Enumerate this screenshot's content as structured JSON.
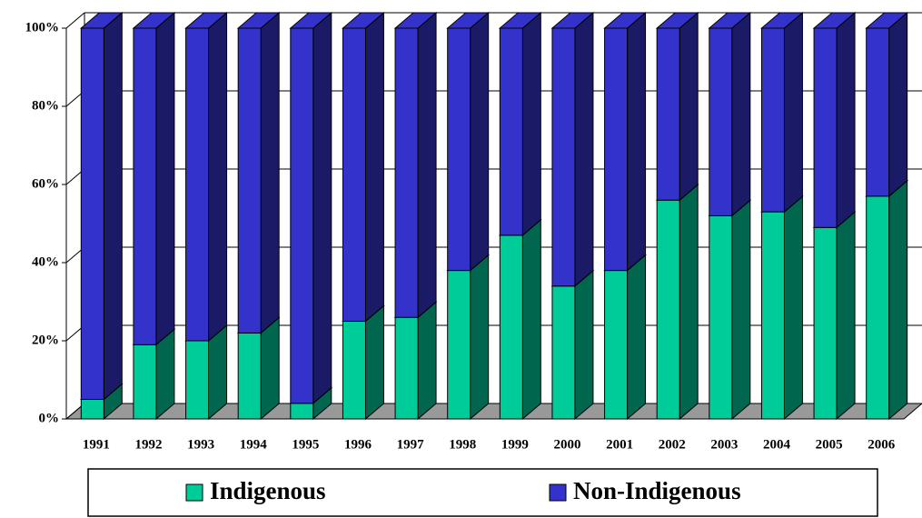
{
  "chart_data": {
    "type": "stacked-bar-3d",
    "categories": [
      "1991",
      "1992",
      "1993",
      "1994",
      "1995",
      "1996",
      "1997",
      "1998",
      "1999",
      "2000",
      "2001",
      "2002",
      "2003",
      "2004",
      "2005",
      "2006"
    ],
    "series": [
      {
        "name": "Indigenous",
        "color": "#00cc99",
        "values": [
          5,
          19,
          20,
          22,
          4,
          25,
          26,
          38,
          47,
          34,
          38,
          56,
          52,
          53,
          49,
          57
        ]
      },
      {
        "name": "Non-Indigenous",
        "color": "#3333cc",
        "values": [
          95,
          81,
          80,
          78,
          96,
          75,
          74,
          62,
          53,
          66,
          62,
          44,
          48,
          47,
          51,
          43
        ]
      }
    ],
    "ylim": [
      0,
      100
    ],
    "yticks": [
      {
        "value": 0,
        "label": "0%"
      },
      {
        "value": 20,
        "label": "20%"
      },
      {
        "value": 40,
        "label": "40%"
      },
      {
        "value": 60,
        "label": "60%"
      },
      {
        "value": 80,
        "label": "80%"
      },
      {
        "value": 100,
        "label": "100%"
      }
    ],
    "grid": true,
    "legend": "bottom"
  }
}
